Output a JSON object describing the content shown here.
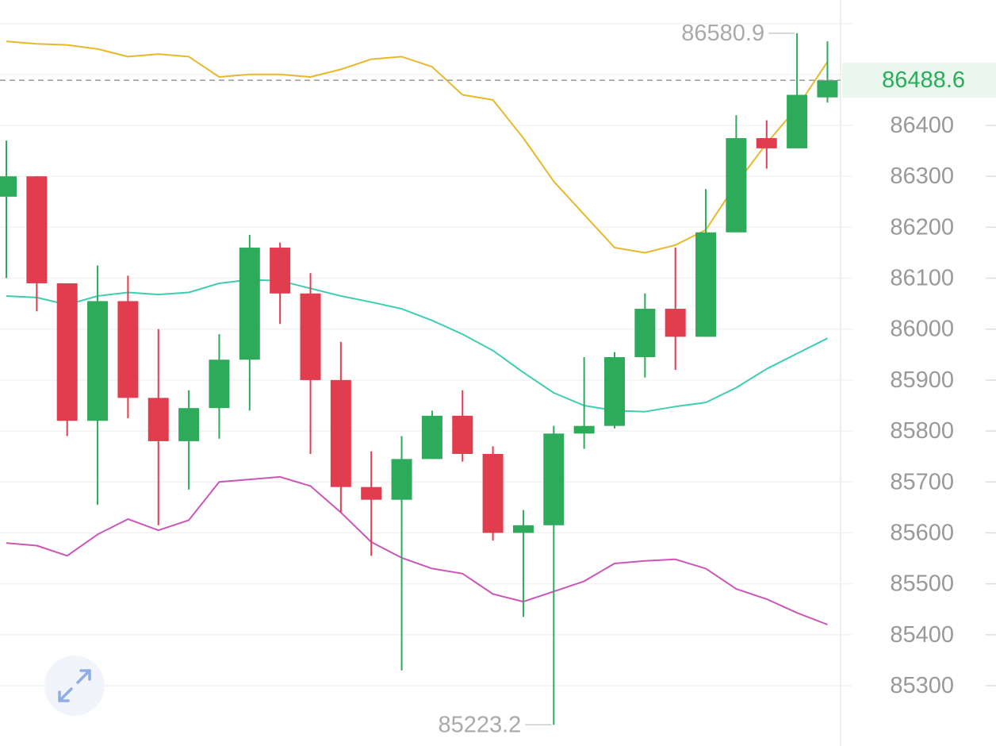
{
  "chart_data": {
    "type": "candlestick",
    "y_axis": {
      "ticks": [
        "86400",
        "86300",
        "86200",
        "86100",
        "86000",
        "85900",
        "85800",
        "85700",
        "85600",
        "85500",
        "85400",
        "85300"
      ],
      "ylim": [
        85220,
        86580.9
      ],
      "position": "right"
    },
    "grid": true,
    "current_price": {
      "value": 86488.6,
      "label": "86488.6",
      "color": "#2dab5a"
    },
    "max_marker": {
      "value": 86580.9,
      "label": "86580.9"
    },
    "min_marker": {
      "value": 85223.2,
      "label": "85223.2"
    },
    "candles": [
      {
        "open": 86260,
        "high": 86370,
        "low": 86100,
        "close": 86300
      },
      {
        "open": 86300,
        "high": 86300,
        "low": 86035,
        "close": 86090
      },
      {
        "open": 86090,
        "high": 86090,
        "low": 85790,
        "close": 85820
      },
      {
        "open": 85820,
        "high": 86125,
        "low": 85655,
        "close": 86055
      },
      {
        "open": 86055,
        "high": 86105,
        "low": 85825,
        "close": 85865
      },
      {
        "open": 85865,
        "high": 86000,
        "low": 85615,
        "close": 85780
      },
      {
        "open": 85780,
        "high": 85880,
        "low": 85685,
        "close": 85845
      },
      {
        "open": 85845,
        "high": 85990,
        "low": 85785,
        "close": 85940
      },
      {
        "open": 85940,
        "high": 86185,
        "low": 85840,
        "close": 86160
      },
      {
        "open": 86160,
        "high": 86170,
        "low": 86010,
        "close": 86070
      },
      {
        "open": 86070,
        "high": 86110,
        "low": 85755,
        "close": 85900
      },
      {
        "open": 85900,
        "high": 85975,
        "low": 85640,
        "close": 85690
      },
      {
        "open": 85690,
        "high": 85760,
        "low": 85555,
        "close": 85665
      },
      {
        "open": 85665,
        "high": 85790,
        "low": 85330,
        "close": 85745
      },
      {
        "open": 85745,
        "high": 85840,
        "low": 85745,
        "close": 85830
      },
      {
        "open": 85830,
        "high": 85880,
        "low": 85740,
        "close": 85755
      },
      {
        "open": 85755,
        "high": 85770,
        "low": 85585,
        "close": 85600
      },
      {
        "open": 85600,
        "high": 85645,
        "low": 85435,
        "close": 85615
      },
      {
        "open": 85615,
        "high": 85810,
        "low": 85223.2,
        "close": 85795
      },
      {
        "open": 85795,
        "high": 85945,
        "low": 85765,
        "close": 85810
      },
      {
        "open": 85810,
        "high": 85955,
        "low": 85805,
        "close": 85945
      },
      {
        "open": 85945,
        "high": 86070,
        "low": 85905,
        "close": 86040
      },
      {
        "open": 86040,
        "high": 86160,
        "low": 85920,
        "close": 85985
      },
      {
        "open": 85985,
        "high": 86275,
        "low": 85985,
        "close": 86190
      },
      {
        "open": 86190,
        "high": 86420,
        "low": 86190,
        "close": 86375
      },
      {
        "open": 86375,
        "high": 86410,
        "low": 86315,
        "close": 86355
      },
      {
        "open": 86355,
        "high": 86580.9,
        "low": 86355,
        "close": 86460
      },
      {
        "open": 86455,
        "high": 86565,
        "low": 86445,
        "close": 86488.6
      }
    ],
    "bands": [
      {
        "name": "upper",
        "color": "#e8b82c",
        "values": [
          86565,
          86560,
          86558,
          86550,
          86535,
          86540,
          86535,
          86495,
          86500,
          86500,
          86495,
          86510,
          86530,
          86535,
          86515,
          86460,
          86450,
          86375,
          86290,
          86225,
          86160,
          86150,
          86165,
          86195,
          86285,
          86365,
          86435,
          86525
        ]
      },
      {
        "name": "middle",
        "color": "#3fcdb2",
        "values": [
          86065,
          86062,
          86048,
          86065,
          86072,
          86068,
          86072,
          86090,
          86097,
          86095,
          86080,
          86065,
          86053,
          86040,
          86017,
          85990,
          85958,
          85915,
          85875,
          85850,
          85840,
          85838,
          85848,
          85856,
          85885,
          85922,
          85952,
          85982
        ]
      },
      {
        "name": "lower",
        "color": "#cc55b8",
        "values": [
          85580,
          85575,
          85555,
          85597,
          85627,
          85605,
          85625,
          85700,
          85705,
          85710,
          85692,
          85640,
          85582,
          85551,
          85530,
          85520,
          85480,
          85465,
          85485,
          85505,
          85540,
          85545,
          85548,
          85530,
          85490,
          85470,
          85443,
          85420
        ]
      }
    ],
    "up_color": "#2dab5a",
    "down_color": "#e23d4e"
  },
  "controls": {
    "expand_icon": "expand-arrows-icon",
    "expand_color": "#8faee6"
  }
}
